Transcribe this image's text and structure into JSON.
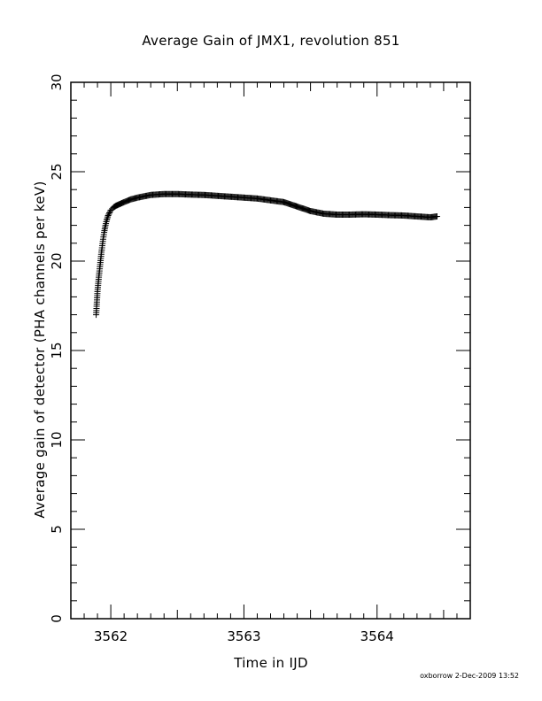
{
  "chart_data": {
    "type": "scatter",
    "title": "Average Gain of JMX1, revolution 851",
    "xlabel": "Time in IJD",
    "ylabel": "Average gain of detector (PHA channels per keV)",
    "xlim": [
      3561.7,
      3564.7
    ],
    "ylim": [
      0,
      30
    ],
    "x_ticks": [
      3562,
      3563,
      3564
    ],
    "y_ticks": [
      0,
      5,
      10,
      15,
      20,
      25,
      30
    ],
    "grid": false,
    "marker": "plus",
    "color": "#000000",
    "x": [
      3561.89,
      3561.9,
      3561.91,
      3561.92,
      3561.93,
      3561.94,
      3561.95,
      3561.96,
      3561.97,
      3561.98,
      3561.99,
      3562.0,
      3562.02,
      3562.04,
      3562.07,
      3562.1,
      3562.15,
      3562.2,
      3562.3,
      3562.4,
      3562.5,
      3562.6,
      3562.7,
      3562.8,
      3562.9,
      3563.0,
      3563.1,
      3563.2,
      3563.3,
      3563.4,
      3563.5,
      3563.6,
      3563.7,
      3563.8,
      3563.9,
      3564.0,
      3564.1,
      3564.2,
      3564.3,
      3564.4,
      3564.45
    ],
    "values": [
      17.0,
      18.3,
      19.1,
      19.8,
      20.5,
      21.1,
      21.6,
      22.0,
      22.3,
      22.55,
      22.7,
      22.85,
      23.0,
      23.1,
      23.2,
      23.3,
      23.45,
      23.55,
      23.7,
      23.75,
      23.75,
      23.72,
      23.7,
      23.65,
      23.6,
      23.55,
      23.5,
      23.4,
      23.3,
      23.05,
      22.8,
      22.65,
      22.6,
      22.6,
      22.62,
      22.6,
      22.57,
      22.55,
      22.5,
      22.45,
      22.5
    ]
  },
  "stamp": "oxborrow  2-Dec-2009 13:52"
}
